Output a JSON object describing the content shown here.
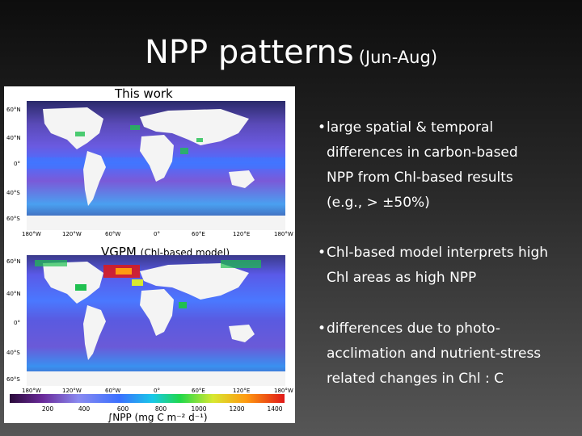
{
  "slide": {
    "title": "NPP patterns",
    "subtitle": "(Jun-Aug)"
  },
  "panel_top": {
    "label": "This work",
    "lat_labels": [
      "60°N",
      "40°N",
      "0°",
      "40°S",
      "60°S"
    ],
    "lon_labels": [
      "180°W",
      "120°W",
      "60°W",
      "0°",
      "60°E",
      "120°E",
      "180°W"
    ]
  },
  "panel_bottom": {
    "label": "VGPM",
    "label_small": "(Chl-based model)",
    "lat_labels": [
      "60°N",
      "40°N",
      "0°",
      "40°S",
      "60°S"
    ],
    "lon_labels": [
      "180°W",
      "120°W",
      "60°W",
      "0°",
      "60°E",
      "120°E",
      "180°W"
    ],
    "colorbar_ticks": [
      "200",
      "400",
      "600",
      "800",
      "1000",
      "1200",
      "1400"
    ],
    "units": "∫NPP (mg C m⁻² d⁻¹)"
  },
  "bullets": [
    {
      "lines": [
        "large spatial & temporal",
        "differences in carbon-based",
        "NPP from Chl-based results",
        "(e.g., > ±50%)"
      ]
    },
    {
      "lines": [
        "Chl-based model interprets high",
        "Chl areas as high NPP"
      ]
    },
    {
      "lines": [
        "differences due to photo-",
        "acclimation and nutrient-stress",
        "related changes in Chl : C"
      ]
    }
  ],
  "colors": {
    "ocean_low": "#5a2a9a",
    "ocean_mid": "#3a6aff",
    "ocean_high": "#20c050",
    "land": "#f4f4f4"
  }
}
